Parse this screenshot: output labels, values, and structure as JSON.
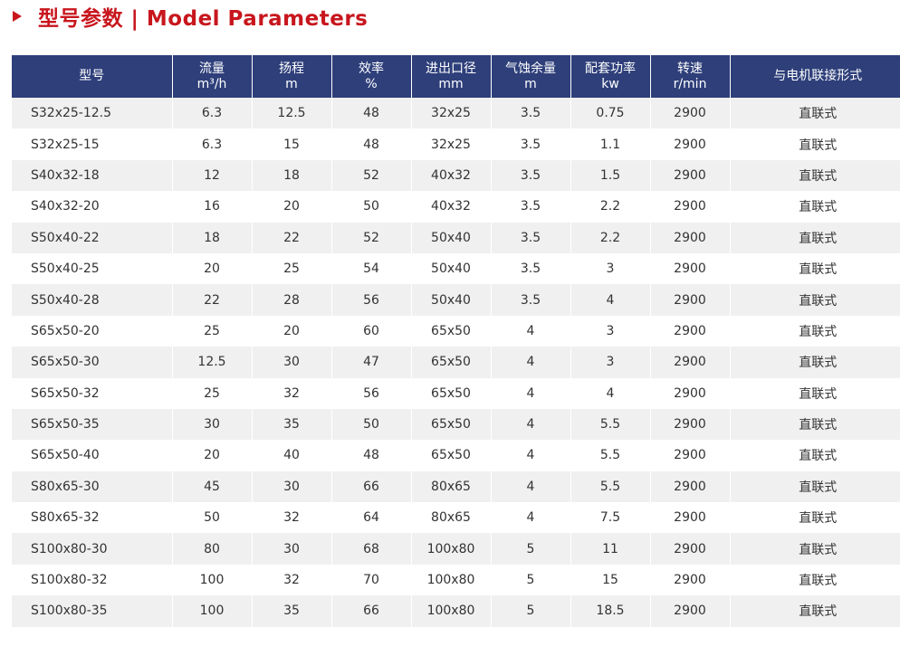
{
  "colors": {
    "accent": "#c8161d",
    "header_bg": "#2e3f7a",
    "row_alt": "#f0f0f0"
  },
  "title": "型号参数 | Model Parameters",
  "table": {
    "headers": [
      [
        "型号"
      ],
      [
        "流量",
        "m³/h"
      ],
      [
        "扬程",
        "m"
      ],
      [
        "效率",
        "%"
      ],
      [
        "进出口径",
        "mm"
      ],
      [
        "气蚀余量",
        "m"
      ],
      [
        "配套功率",
        "kw"
      ],
      [
        "转速",
        "r/min"
      ],
      [
        "与电机联接形式"
      ]
    ],
    "rows": [
      [
        "S32x25-12.5",
        "6.3",
        "12.5",
        "48",
        "32x25",
        "3.5",
        "0.75",
        "2900",
        "直联式"
      ],
      [
        "S32x25-15",
        "6.3",
        "15",
        "48",
        "32x25",
        "3.5",
        "1.1",
        "2900",
        "直联式"
      ],
      [
        "S40x32-18",
        "12",
        "18",
        "52",
        "40x32",
        "3.5",
        "1.5",
        "2900",
        "直联式"
      ],
      [
        "S40x32-20",
        "16",
        "20",
        "50",
        "40x32",
        "3.5",
        "2.2",
        "2900",
        "直联式"
      ],
      [
        "S50x40-22",
        "18",
        "22",
        "52",
        "50x40",
        "3.5",
        "2.2",
        "2900",
        "直联式"
      ],
      [
        "S50x40-25",
        "20",
        "25",
        "54",
        "50x40",
        "3.5",
        "3",
        "2900",
        "直联式"
      ],
      [
        "S50x40-28",
        "22",
        "28",
        "56",
        "50x40",
        "3.5",
        "4",
        "2900",
        "直联式"
      ],
      [
        "S65x50-20",
        "25",
        "20",
        "60",
        "65x50",
        "4",
        "3",
        "2900",
        "直联式"
      ],
      [
        "S65x50-30",
        "12.5",
        "30",
        "47",
        "65x50",
        "4",
        "3",
        "2900",
        "直联式"
      ],
      [
        "S65x50-32",
        "25",
        "32",
        "56",
        "65x50",
        "4",
        "4",
        "2900",
        "直联式"
      ],
      [
        "S65x50-35",
        "30",
        "35",
        "50",
        "65x50",
        "4",
        "5.5",
        "2900",
        "直联式"
      ],
      [
        "S65x50-40",
        "20",
        "40",
        "48",
        "65x50",
        "4",
        "5.5",
        "2900",
        "直联式"
      ],
      [
        "S80x65-30",
        "45",
        "30",
        "66",
        "80x65",
        "4",
        "5.5",
        "2900",
        "直联式"
      ],
      [
        "S80x65-32",
        "50",
        "32",
        "64",
        "80x65",
        "4",
        "7.5",
        "2900",
        "直联式"
      ],
      [
        "S100x80-30",
        "80",
        "30",
        "68",
        "100x80",
        "5",
        "11",
        "2900",
        "直联式"
      ],
      [
        "S100x80-32",
        "100",
        "32",
        "70",
        "100x80",
        "5",
        "15",
        "2900",
        "直联式"
      ],
      [
        "S100x80-35",
        "100",
        "35",
        "66",
        "100x80",
        "5",
        "18.5",
        "2900",
        "直联式"
      ]
    ]
  }
}
